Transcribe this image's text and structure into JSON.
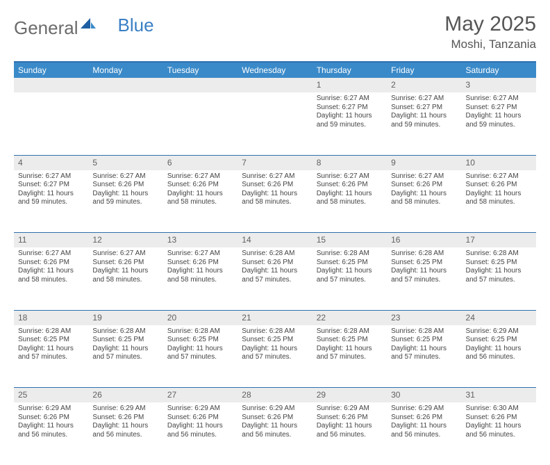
{
  "brand": {
    "name1": "General",
    "name2": "Blue"
  },
  "header": {
    "month_title": "May 2025",
    "location": "Moshi, Tanzania"
  },
  "colors": {
    "header_bg": "#3a8ac9",
    "header_text": "#ffffff",
    "rule": "#2f6fae",
    "daynum_bg": "#ececec",
    "body_text": "#444444",
    "title_text": "#555555",
    "logo_gray": "#6b6b6b",
    "logo_blue": "#3a7fc4"
  },
  "day_labels": [
    "Sunday",
    "Monday",
    "Tuesday",
    "Wednesday",
    "Thursday",
    "Friday",
    "Saturday"
  ],
  "weeks": [
    [
      {
        "n": "",
        "sr": "",
        "ss": "",
        "dl": ""
      },
      {
        "n": "",
        "sr": "",
        "ss": "",
        "dl": ""
      },
      {
        "n": "",
        "sr": "",
        "ss": "",
        "dl": ""
      },
      {
        "n": "",
        "sr": "",
        "ss": "",
        "dl": ""
      },
      {
        "n": "1",
        "sr": "Sunrise: 6:27 AM",
        "ss": "Sunset: 6:27 PM",
        "dl": "Daylight: 11 hours and 59 minutes."
      },
      {
        "n": "2",
        "sr": "Sunrise: 6:27 AM",
        "ss": "Sunset: 6:27 PM",
        "dl": "Daylight: 11 hours and 59 minutes."
      },
      {
        "n": "3",
        "sr": "Sunrise: 6:27 AM",
        "ss": "Sunset: 6:27 PM",
        "dl": "Daylight: 11 hours and 59 minutes."
      }
    ],
    [
      {
        "n": "4",
        "sr": "Sunrise: 6:27 AM",
        "ss": "Sunset: 6:27 PM",
        "dl": "Daylight: 11 hours and 59 minutes."
      },
      {
        "n": "5",
        "sr": "Sunrise: 6:27 AM",
        "ss": "Sunset: 6:26 PM",
        "dl": "Daylight: 11 hours and 59 minutes."
      },
      {
        "n": "6",
        "sr": "Sunrise: 6:27 AM",
        "ss": "Sunset: 6:26 PM",
        "dl": "Daylight: 11 hours and 58 minutes."
      },
      {
        "n": "7",
        "sr": "Sunrise: 6:27 AM",
        "ss": "Sunset: 6:26 PM",
        "dl": "Daylight: 11 hours and 58 minutes."
      },
      {
        "n": "8",
        "sr": "Sunrise: 6:27 AM",
        "ss": "Sunset: 6:26 PM",
        "dl": "Daylight: 11 hours and 58 minutes."
      },
      {
        "n": "9",
        "sr": "Sunrise: 6:27 AM",
        "ss": "Sunset: 6:26 PM",
        "dl": "Daylight: 11 hours and 58 minutes."
      },
      {
        "n": "10",
        "sr": "Sunrise: 6:27 AM",
        "ss": "Sunset: 6:26 PM",
        "dl": "Daylight: 11 hours and 58 minutes."
      }
    ],
    [
      {
        "n": "11",
        "sr": "Sunrise: 6:27 AM",
        "ss": "Sunset: 6:26 PM",
        "dl": "Daylight: 11 hours and 58 minutes."
      },
      {
        "n": "12",
        "sr": "Sunrise: 6:27 AM",
        "ss": "Sunset: 6:26 PM",
        "dl": "Daylight: 11 hours and 58 minutes."
      },
      {
        "n": "13",
        "sr": "Sunrise: 6:27 AM",
        "ss": "Sunset: 6:26 PM",
        "dl": "Daylight: 11 hours and 58 minutes."
      },
      {
        "n": "14",
        "sr": "Sunrise: 6:28 AM",
        "ss": "Sunset: 6:26 PM",
        "dl": "Daylight: 11 hours and 57 minutes."
      },
      {
        "n": "15",
        "sr": "Sunrise: 6:28 AM",
        "ss": "Sunset: 6:25 PM",
        "dl": "Daylight: 11 hours and 57 minutes."
      },
      {
        "n": "16",
        "sr": "Sunrise: 6:28 AM",
        "ss": "Sunset: 6:25 PM",
        "dl": "Daylight: 11 hours and 57 minutes."
      },
      {
        "n": "17",
        "sr": "Sunrise: 6:28 AM",
        "ss": "Sunset: 6:25 PM",
        "dl": "Daylight: 11 hours and 57 minutes."
      }
    ],
    [
      {
        "n": "18",
        "sr": "Sunrise: 6:28 AM",
        "ss": "Sunset: 6:25 PM",
        "dl": "Daylight: 11 hours and 57 minutes."
      },
      {
        "n": "19",
        "sr": "Sunrise: 6:28 AM",
        "ss": "Sunset: 6:25 PM",
        "dl": "Daylight: 11 hours and 57 minutes."
      },
      {
        "n": "20",
        "sr": "Sunrise: 6:28 AM",
        "ss": "Sunset: 6:25 PM",
        "dl": "Daylight: 11 hours and 57 minutes."
      },
      {
        "n": "21",
        "sr": "Sunrise: 6:28 AM",
        "ss": "Sunset: 6:25 PM",
        "dl": "Daylight: 11 hours and 57 minutes."
      },
      {
        "n": "22",
        "sr": "Sunrise: 6:28 AM",
        "ss": "Sunset: 6:25 PM",
        "dl": "Daylight: 11 hours and 57 minutes."
      },
      {
        "n": "23",
        "sr": "Sunrise: 6:28 AM",
        "ss": "Sunset: 6:25 PM",
        "dl": "Daylight: 11 hours and 57 minutes."
      },
      {
        "n": "24",
        "sr": "Sunrise: 6:29 AM",
        "ss": "Sunset: 6:25 PM",
        "dl": "Daylight: 11 hours and 56 minutes."
      }
    ],
    [
      {
        "n": "25",
        "sr": "Sunrise: 6:29 AM",
        "ss": "Sunset: 6:26 PM",
        "dl": "Daylight: 11 hours and 56 minutes."
      },
      {
        "n": "26",
        "sr": "Sunrise: 6:29 AM",
        "ss": "Sunset: 6:26 PM",
        "dl": "Daylight: 11 hours and 56 minutes."
      },
      {
        "n": "27",
        "sr": "Sunrise: 6:29 AM",
        "ss": "Sunset: 6:26 PM",
        "dl": "Daylight: 11 hours and 56 minutes."
      },
      {
        "n": "28",
        "sr": "Sunrise: 6:29 AM",
        "ss": "Sunset: 6:26 PM",
        "dl": "Daylight: 11 hours and 56 minutes."
      },
      {
        "n": "29",
        "sr": "Sunrise: 6:29 AM",
        "ss": "Sunset: 6:26 PM",
        "dl": "Daylight: 11 hours and 56 minutes."
      },
      {
        "n": "30",
        "sr": "Sunrise: 6:29 AM",
        "ss": "Sunset: 6:26 PM",
        "dl": "Daylight: 11 hours and 56 minutes."
      },
      {
        "n": "31",
        "sr": "Sunrise: 6:30 AM",
        "ss": "Sunset: 6:26 PM",
        "dl": "Daylight: 11 hours and 56 minutes."
      }
    ]
  ]
}
